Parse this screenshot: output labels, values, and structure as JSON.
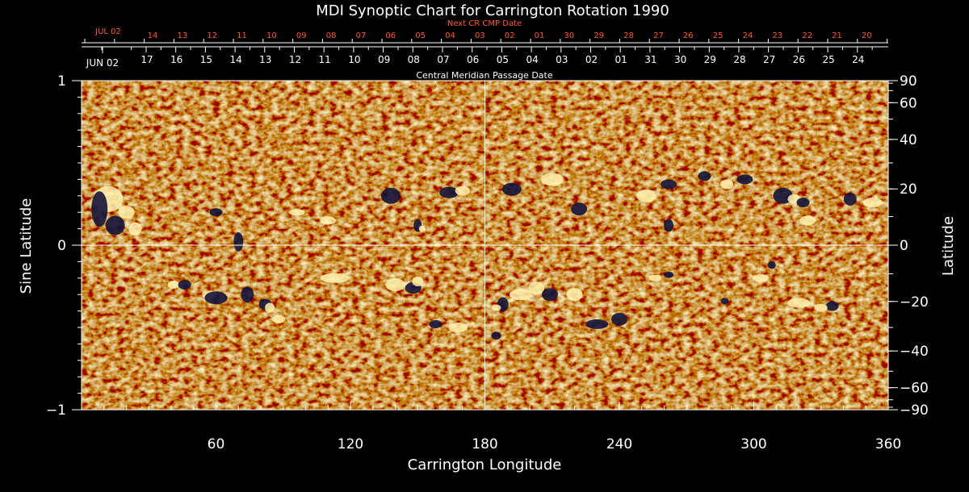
{
  "chart_data": {
    "type": "heatmap",
    "title": "MDI Synoptic Chart for Carrington Rotation 1990",
    "xlabel": "Carrington Longitude",
    "ylabel_left": "Sine Latitude",
    "ylabel_right": "Latitude",
    "xlim": [
      0,
      360
    ],
    "ylim": [
      -1,
      1
    ],
    "x_ticks": [
      60,
      120,
      180,
      240,
      300,
      360
    ],
    "y_left_ticks": [
      1,
      0,
      -1
    ],
    "y_right_ticks": [
      90,
      60,
      40,
      20,
      0,
      -20,
      -40,
      -60,
      -90
    ],
    "y_left_labels": [
      "1",
      "0",
      "−1"
    ],
    "y_right_labels": [
      "90",
      "60",
      "40",
      "20",
      "0",
      "−20",
      "−40",
      "−60",
      "−90"
    ],
    "crosshair": {
      "longitude": 180,
      "sine_latitude": 0
    },
    "cmp_axis": {
      "label": "Central Meridian Passage Date",
      "start_label": "JUN 02",
      "dates": [
        "17",
        "16",
        "15",
        "14",
        "13",
        "12",
        "11",
        "10",
        "09",
        "08",
        "07",
        "06",
        "05",
        "04",
        "03",
        "02",
        "01",
        "31",
        "30",
        "29",
        "28",
        "27",
        "26",
        "25",
        "24"
      ]
    },
    "next_cr_axis": {
      "label": "Next CR CMP Date",
      "start_label": "JUL 02",
      "dates": [
        "14",
        "13",
        "12",
        "11",
        "10",
        "09",
        "08",
        "07",
        "06",
        "05",
        "04",
        "03",
        "02",
        "01",
        "30",
        "29",
        "28",
        "27",
        "26",
        "25",
        "24",
        "23",
        "22",
        "21",
        "20"
      ]
    },
    "colors": {
      "background": "#ff5a14",
      "positive": "#fff2b0",
      "negative": "#14143c",
      "axes": "#ffffff",
      "next_cr_text": "#ff5a28"
    }
  }
}
